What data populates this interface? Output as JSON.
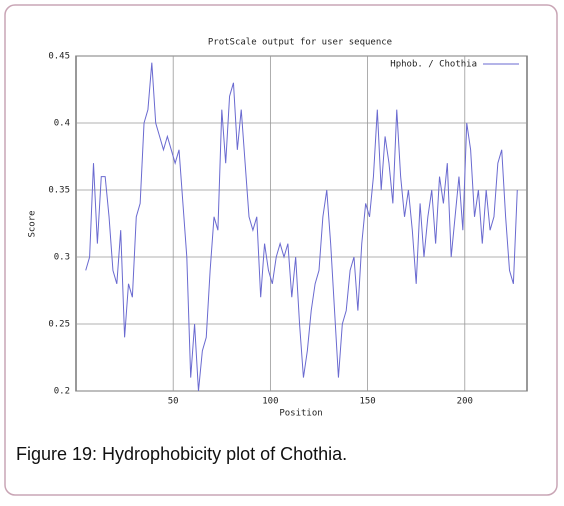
{
  "chart_data": {
    "type": "line",
    "title": "ProtScale output for user sequence",
    "xlabel": "Position",
    "ylabel": "Score",
    "x": [
      5,
      7,
      9,
      11,
      13,
      15,
      17,
      19,
      21,
      23,
      25,
      27,
      29,
      31,
      33,
      35,
      37,
      39,
      41,
      43,
      45,
      47,
      49,
      51,
      53,
      55,
      57,
      59,
      61,
      63,
      65,
      67,
      69,
      71,
      73,
      75,
      77,
      79,
      81,
      83,
      85,
      87,
      89,
      91,
      93,
      95,
      97,
      99,
      101,
      103,
      105,
      107,
      109,
      111,
      113,
      115,
      117,
      119,
      121,
      123,
      125,
      127,
      129,
      131,
      133,
      135,
      137,
      139,
      141,
      143,
      145,
      147,
      149,
      151,
      153,
      155,
      157,
      159,
      161,
      163,
      165,
      167,
      169,
      171,
      173,
      175,
      177,
      179,
      181,
      183,
      185,
      187,
      189,
      191,
      193,
      195,
      197,
      199,
      201,
      203,
      205,
      207,
      209,
      211,
      213,
      215,
      217,
      219,
      221,
      223,
      225,
      227
    ],
    "series": [
      {
        "name": "Hphob. / Chothia",
        "color": "#6a6ad0",
        "values": [
          0.29,
          0.3,
          0.37,
          0.31,
          0.36,
          0.36,
          0.33,
          0.29,
          0.28,
          0.32,
          0.24,
          0.28,
          0.27,
          0.33,
          0.34,
          0.4,
          0.41,
          0.445,
          0.4,
          0.39,
          0.38,
          0.39,
          0.38,
          0.37,
          0.38,
          0.34,
          0.3,
          0.21,
          0.25,
          0.2,
          0.23,
          0.24,
          0.29,
          0.33,
          0.32,
          0.41,
          0.37,
          0.42,
          0.43,
          0.38,
          0.41,
          0.37,
          0.33,
          0.32,
          0.33,
          0.27,
          0.31,
          0.29,
          0.28,
          0.3,
          0.31,
          0.3,
          0.31,
          0.27,
          0.3,
          0.25,
          0.21,
          0.23,
          0.26,
          0.28,
          0.29,
          0.33,
          0.35,
          0.31,
          0.26,
          0.21,
          0.25,
          0.26,
          0.29,
          0.3,
          0.26,
          0.31,
          0.34,
          0.33,
          0.36,
          0.41,
          0.35,
          0.39,
          0.37,
          0.34,
          0.41,
          0.36,
          0.33,
          0.35,
          0.32,
          0.28,
          0.34,
          0.3,
          0.33,
          0.35,
          0.31,
          0.36,
          0.34,
          0.37,
          0.3,
          0.33,
          0.36,
          0.32,
          0.4,
          0.38,
          0.33,
          0.35,
          0.31,
          0.35,
          0.32,
          0.33,
          0.37,
          0.38,
          0.33,
          0.29,
          0.28,
          0.35
        ]
      }
    ],
    "xlim": [
      0,
      232
    ],
    "xticks": [
      50,
      100,
      150,
      200
    ],
    "ylim": [
      0.2,
      0.45
    ],
    "yticks": [
      0.2,
      0.25,
      0.3,
      0.35,
      0.4,
      0.45
    ],
    "grid": true,
    "legend": "top-right"
  },
  "caption": "Figure 19: Hydrophobicity plot of Chothia."
}
